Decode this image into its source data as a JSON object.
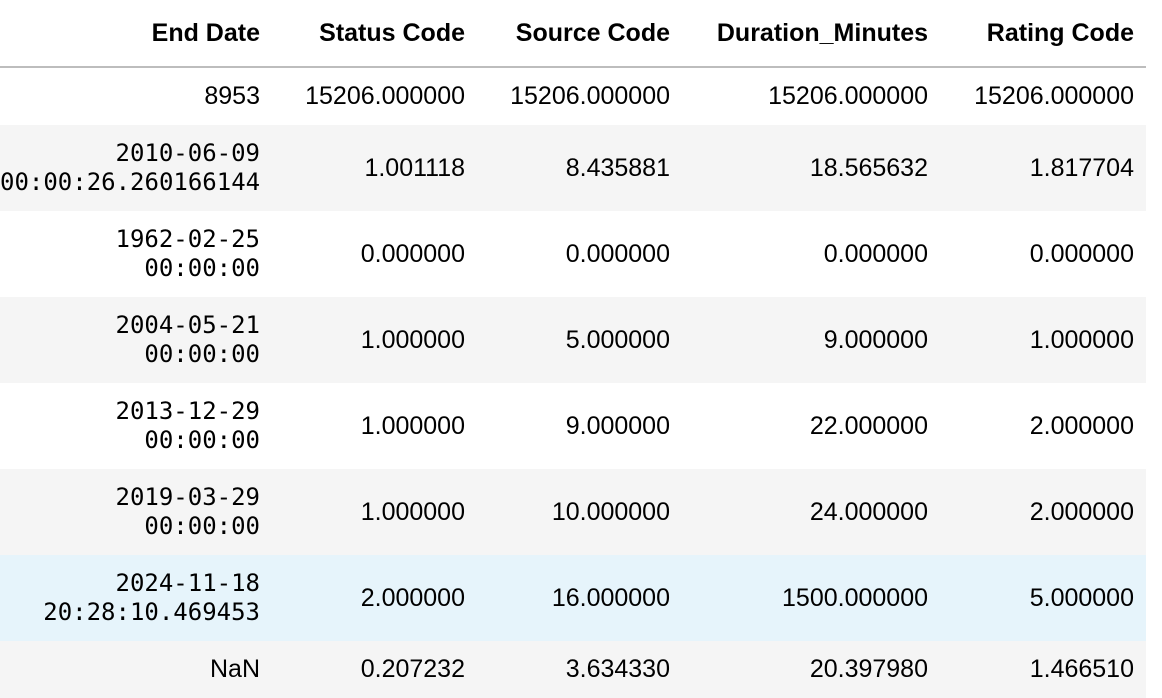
{
  "table": {
    "columns": [
      "End Date",
      "Status Code",
      "Source Code",
      "Duration_Minutes",
      "Rating Code"
    ],
    "rows": [
      {
        "end_date": "8953",
        "status_code": "15206.000000",
        "source_code": "15206.000000",
        "duration_minutes": "15206.000000",
        "rating_code": "15206.000000"
      },
      {
        "end_date": "2010-06-09 00:00:26.260166144",
        "status_code": "1.001118",
        "source_code": "8.435881",
        "duration_minutes": "18.565632",
        "rating_code": "1.817704"
      },
      {
        "end_date": "1962-02-25 00:00:00",
        "status_code": "0.000000",
        "source_code": "0.000000",
        "duration_minutes": "0.000000",
        "rating_code": "0.000000"
      },
      {
        "end_date": "2004-05-21 00:00:00",
        "status_code": "1.000000",
        "source_code": "5.000000",
        "duration_minutes": "9.000000",
        "rating_code": "1.000000"
      },
      {
        "end_date": "2013-12-29 00:00:00",
        "status_code": "1.000000",
        "source_code": "9.000000",
        "duration_minutes": "22.000000",
        "rating_code": "2.000000"
      },
      {
        "end_date": "2019-03-29 00:00:00",
        "status_code": "1.000000",
        "source_code": "10.000000",
        "duration_minutes": "24.000000",
        "rating_code": "2.000000"
      },
      {
        "end_date": "2024-11-18 20:28:10.469453",
        "status_code": "2.000000",
        "source_code": "16.000000",
        "duration_minutes": "1500.000000",
        "rating_code": "5.000000"
      },
      {
        "end_date": "NaN",
        "status_code": "0.207232",
        "source_code": "3.634330",
        "duration_minutes": "20.397980",
        "rating_code": "1.466510"
      }
    ]
  },
  "colors": {
    "stripe": "#f5f5f5",
    "hover_highlight": "#e6f4fb",
    "header_border": "#bdbdbd"
  }
}
